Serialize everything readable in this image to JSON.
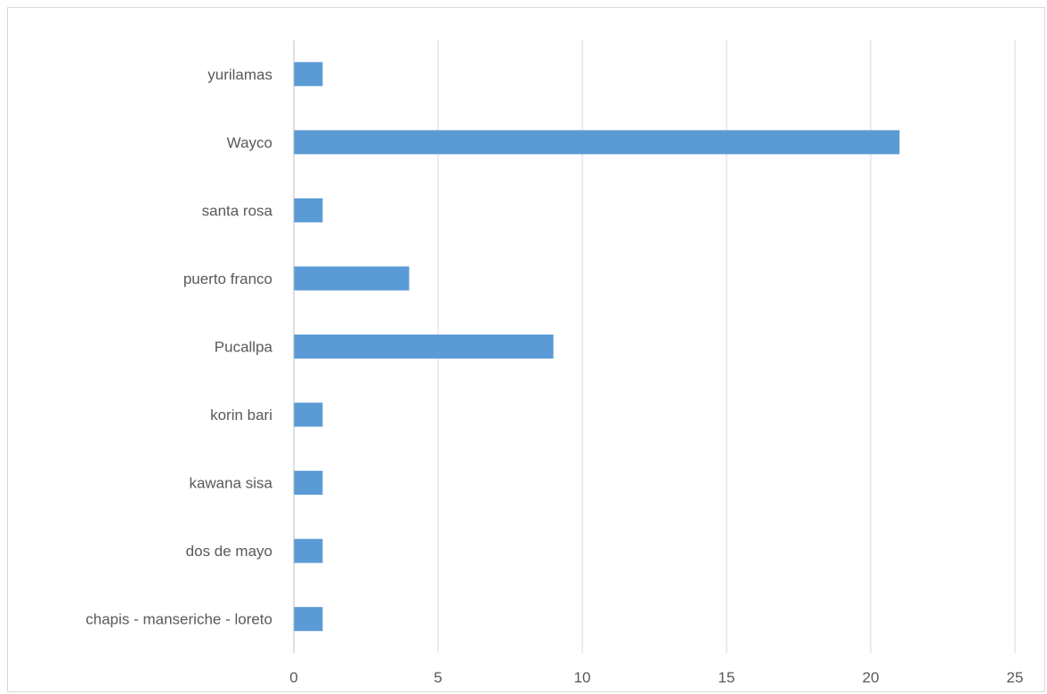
{
  "chart_data": {
    "type": "bar",
    "orientation": "horizontal",
    "categories": [
      "yurilamas",
      "Wayco",
      "santa rosa",
      "puerto franco",
      "Pucallpa",
      "korin bari",
      "kawana sisa",
      "dos de mayo",
      "chapis - manseriche - loreto"
    ],
    "values": [
      1,
      21,
      1,
      4,
      9,
      1,
      1,
      1,
      1
    ],
    "xlim": [
      0,
      25
    ],
    "x_ticks": [
      0,
      5,
      10,
      15,
      20,
      25
    ],
    "x_tick_labels": [
      "0",
      "5",
      "10",
      "15",
      "20",
      "25"
    ],
    "title": "",
    "xlabel": "",
    "ylabel": "",
    "grid": "vertical",
    "legend": "none",
    "colors": {
      "bar": "#5b9bd5",
      "grid": "#d9d9d9",
      "axis": "#bfbfbf",
      "text": "#595959",
      "frame": "#d9d9d9"
    }
  }
}
